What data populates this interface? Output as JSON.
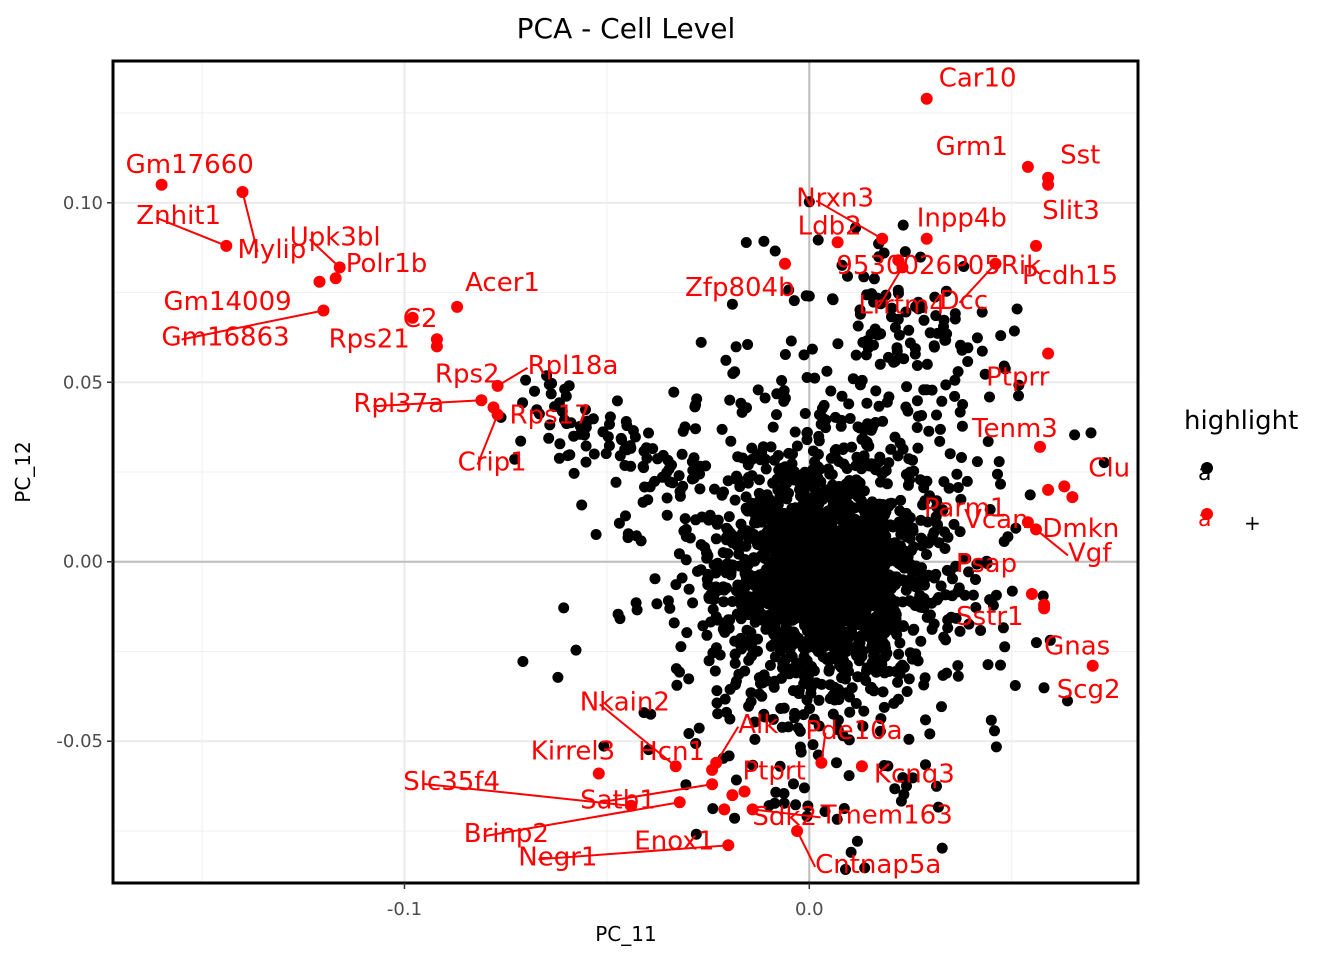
{
  "chart_data": {
    "type": "scatter",
    "title": "PCA - Cell Level",
    "xlabel": "PC_11",
    "ylabel": "PC_12",
    "xlim": [
      -0.172,
      0.0812
    ],
    "ylim": [
      -0.0895,
      0.1395
    ],
    "x_ticks": [
      -0.1,
      0.0
    ],
    "x_tick_labels": [
      "-0.1",
      "0.0"
    ],
    "y_ticks": [
      -0.05,
      0.0,
      0.05,
      0.1
    ],
    "y_tick_labels": [
      "-0.05",
      "0.00",
      "0.05",
      "0.10"
    ],
    "grid": true,
    "legend": {
      "title": "highlight",
      "placement": "right",
      "entries": [
        {
          "key_glyph": "a",
          "label": "",
          "color": "#000000"
        },
        {
          "key_glyph": "a",
          "label": "+",
          "color": "#ff0000"
        }
      ]
    },
    "colors": {
      "background_points": "#000000",
      "highlight_points": "#ff0000"
    },
    "highlighted_genes": [
      {
        "label": "Car10",
        "x": 0.029,
        "y": 0.129
      },
      {
        "label": "Grm1",
        "x": 0.054,
        "y": 0.11
      },
      {
        "label": "Sst",
        "x": 0.059,
        "y": 0.107
      },
      {
        "label": "Slit3",
        "x": 0.059,
        "y": 0.105
      },
      {
        "label": "Nrxn3",
        "x": 0.018,
        "y": 0.09
      },
      {
        "label": "Inpp4b",
        "x": 0.029,
        "y": 0.09
      },
      {
        "label": "Ldb2",
        "x": 0.007,
        "y": 0.089
      },
      {
        "label": "Zfp804b",
        "x": -0.006,
        "y": 0.083
      },
      {
        "label": "9530026P05Rik",
        "x": 0.022,
        "y": 0.084
      },
      {
        "label": "Lrrtm4",
        "x": 0.023,
        "y": 0.082
      },
      {
        "label": "Pcdh15",
        "x": 0.056,
        "y": 0.088
      },
      {
        "label": "Dcc",
        "x": 0.046,
        "y": 0.083
      },
      {
        "label": "Gm17660",
        "x": -0.16,
        "y": 0.105
      },
      {
        "label": "Mylip",
        "x": -0.14,
        "y": 0.103
      },
      {
        "label": "Znhit1",
        "x": -0.144,
        "y": 0.088
      },
      {
        "label": "Upk3bl",
        "x": -0.116,
        "y": 0.082
      },
      {
        "label": "Polr1b",
        "x": -0.117,
        "y": 0.079
      },
      {
        "label": "Gm14009",
        "x": -0.121,
        "y": 0.078
      },
      {
        "label": "Gm16863",
        "x": -0.12,
        "y": 0.07
      },
      {
        "label": "Rps21",
        "x": -0.098,
        "y": 0.068
      },
      {
        "label": "C2",
        "x": -0.092,
        "y": 0.062
      },
      {
        "label": "Acer1",
        "x": -0.087,
        "y": 0.071
      },
      {
        "label": "Rps2",
        "x": -0.092,
        "y": 0.06
      },
      {
        "label": "Rpl18a",
        "x": -0.077,
        "y": 0.049
      },
      {
        "label": "Rpl37a",
        "x": -0.081,
        "y": 0.045
      },
      {
        "label": "Rps17",
        "x": -0.078,
        "y": 0.043
      },
      {
        "label": "Crip1",
        "x": -0.077,
        "y": 0.041
      },
      {
        "label": "Ptprr",
        "x": 0.059,
        "y": 0.058
      },
      {
        "label": "Tenm3",
        "x": 0.057,
        "y": 0.032
      },
      {
        "label": "Vcan",
        "x": 0.059,
        "y": 0.02
      },
      {
        "label": "Clu",
        "x": 0.063,
        "y": 0.021
      },
      {
        "label": "Dmkn",
        "x": 0.065,
        "y": 0.018
      },
      {
        "label": "Parm1",
        "x": 0.054,
        "y": 0.011
      },
      {
        "label": "Vgf",
        "x": 0.056,
        "y": 0.009
      },
      {
        "label": "Psap",
        "x": 0.055,
        "y": -0.009
      },
      {
        "label": "Sstr1",
        "x": 0.058,
        "y": -0.012
      },
      {
        "label": "Gnas",
        "x": 0.058,
        "y": -0.013
      },
      {
        "label": "Scg2",
        "x": 0.07,
        "y": -0.029
      },
      {
        "label": "Nkain2",
        "x": -0.033,
        "y": -0.057
      },
      {
        "label": "Alk",
        "x": -0.023,
        "y": -0.056
      },
      {
        "label": "Hcn1",
        "x": -0.024,
        "y": -0.058
      },
      {
        "label": "Pde10a",
        "x": 0.003,
        "y": -0.056
      },
      {
        "label": "Kcnq3",
        "x": 0.013,
        "y": -0.057
      },
      {
        "label": "Kirrel3",
        "x": -0.052,
        "y": -0.059
      },
      {
        "label": "Ptprt",
        "x": -0.016,
        "y": -0.064
      },
      {
        "label": "Satb1",
        "x": -0.024,
        "y": -0.062
      },
      {
        "label": "Slc35f4",
        "x": -0.044,
        "y": -0.068
      },
      {
        "label": "Tmem163",
        "x": -0.014,
        "y": -0.069
      },
      {
        "label": "Brinp2",
        "x": -0.032,
        "y": -0.067
      },
      {
        "label": "Enox1",
        "x": -0.021,
        "y": -0.069
      },
      {
        "label": "Sdk2",
        "x": -0.019,
        "y": -0.065
      },
      {
        "label": "Cntnap5a",
        "x": -0.003,
        "y": -0.075
      },
      {
        "label": "Negr1",
        "x": -0.02,
        "y": -0.079
      }
    ]
  }
}
